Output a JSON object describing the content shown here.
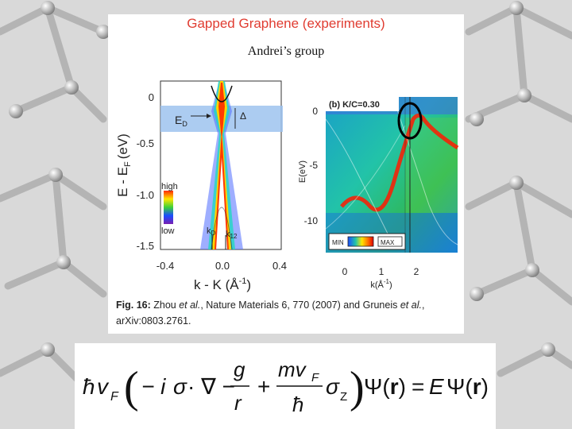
{
  "slide": {
    "title": "Gapped Graphene (experiments)",
    "subtitle": "Andrei’s group"
  },
  "figure_a": {
    "y_ticks": [
      "0",
      "-0.5",
      "-1.0",
      "-1.5"
    ],
    "x_ticks": [
      "-0.4",
      "0.0",
      "0.4"
    ],
    "y_label_base": "E - E",
    "y_label_sub": "F",
    "y_label_unit": "(eV)",
    "x_label_base": "k - K (Å",
    "x_label_sup": "-1",
    "x_label_end": ")",
    "colorbar_high": "high",
    "colorbar_low": "low",
    "ed_label": "E",
    "ed_sub": "D",
    "delta_label": "Δ",
    "kd_label": "k",
    "kd_sub": "D",
    "k12_label": "k",
    "k12_sub": "12"
  },
  "figure_b": {
    "panel_label": "(b) K/C=0.30",
    "y_ticks": [
      "0",
      "-5",
      "-10"
    ],
    "x_ticks": [
      "0",
      "1",
      "2"
    ],
    "y_label": "E(eV)",
    "x_label_base": "k(Å",
    "x_label_sup": "-1",
    "x_label_end": ")",
    "legend_min": "MIN",
    "legend_max": "MAX"
  },
  "caption": {
    "fig_label": "Fig. 16:",
    "text_1": " Zhou ",
    "etal_1": "et al.",
    "text_2": ", Nature Materials 6, 770 (2007) and Gruneis ",
    "etal_2": "et al.",
    "text_3": ",",
    "line2": "arXiv:0803.2761."
  },
  "equation": {
    "hbar": "ħ",
    "v": "v",
    "v_sub": "F",
    "open": "(",
    "minus_i": "− i",
    "sigma": "σ",
    "dot_nabla": "· ∇ −",
    "g": "g",
    "r": "r",
    "plus": "+",
    "mv": "mv",
    "mv_sub": "F",
    "hbar2": "ħ",
    "sigma_z": "σ",
    "sigma_z_sub": "Z",
    "close": ")",
    "psi_r": "Ψ(",
    "bold_r": "r",
    "psi_close": ")",
    "equals": "=",
    "E": "E",
    "psi_r2": "Ψ(",
    "bold_r2": "r",
    "psi_close2": ")"
  }
}
